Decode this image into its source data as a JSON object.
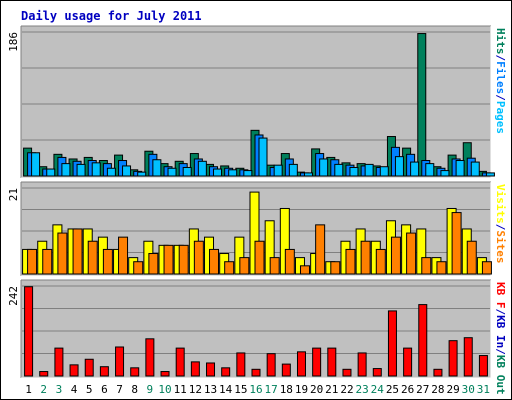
{
  "chart_data": {
    "type": "bar",
    "title": "Daily usage for July 2011",
    "days": [
      "1",
      "2",
      "3",
      "4",
      "5",
      "6",
      "7",
      "8",
      "9",
      "10",
      "11",
      "12",
      "13",
      "14",
      "15",
      "16",
      "17",
      "18",
      "19",
      "20",
      "21",
      "22",
      "23",
      "24",
      "25",
      "26",
      "27",
      "28",
      "29",
      "30",
      "31"
    ],
    "weekend_days": [
      "2",
      "3",
      "9",
      "10",
      "16",
      "17",
      "23",
      "24",
      "30",
      "31"
    ],
    "colors": {
      "background": "#ffffff",
      "plot": "#c0c0c0",
      "title": "#0000c0",
      "weekday_label": "#000000",
      "weekend_label": "#00805c",
      "hits": "#00805c",
      "files": "#0080ff",
      "pages": "#00c0ff",
      "visits": "#ffff00",
      "sites": "#ff8000",
      "kbin": "#0000c0",
      "kbout": "#00805c",
      "kbf": "#ff0000"
    },
    "panels": [
      {
        "id": "hits_files_pages",
        "ymax_label": "186",
        "ymax": 186,
        "legend": [
          {
            "text": "Hits",
            "color_key": "hits"
          },
          {
            "text": "/",
            "color_key": "title"
          },
          {
            "text": "Files",
            "color_key": "files"
          },
          {
            "text": "/",
            "color_key": "title"
          },
          {
            "text": "Pages",
            "color_key": "pages"
          }
        ],
        "series": [
          {
            "name": "Hits",
            "color_key": "hits",
            "values": [
              36,
              12,
              28,
              22,
              24,
              20,
              27,
              8,
              32,
              16,
              19,
              29,
              15,
              13,
              10,
              59,
              14,
              29,
              5,
              35,
              24,
              17,
              16,
              13,
              51,
              36,
              184,
              12,
              27,
              43,
              6
            ]
          },
          {
            "name": "Files",
            "color_key": "files",
            "values": [
              30,
              9,
              24,
              19,
              20,
              16,
              20,
              6,
              28,
              12,
              16,
              22,
              12,
              10,
              8,
              53,
              11,
              22,
              4,
              29,
              21,
              14,
              13,
              11,
              37,
              28,
              20,
              10,
              22,
              23,
              4
            ]
          },
          {
            "name": "Pages",
            "color_key": "pages",
            "values": [
              30,
              9,
              16,
              15,
              17,
              10,
              13,
              5,
              21,
              10,
              11,
              19,
              9,
              8,
              7,
              49,
              14,
              15,
              4,
              22,
              15,
              11,
              15,
              12,
              25,
              18,
              16,
              7,
              20,
              18,
              4
            ]
          }
        ]
      },
      {
        "id": "visits_sites",
        "ymax_label": "21",
        "ymax": 21,
        "legend": [
          {
            "text": "Visits",
            "color_key": "visits"
          },
          {
            "text": "/",
            "color_key": "title"
          },
          {
            "text": "Sites",
            "color_key": "sites"
          }
        ],
        "series": [
          {
            "name": "Visits",
            "color_key": "visits",
            "values": [
              6,
              8,
              12,
              11,
              11,
              9,
              6,
              4,
              8,
              7,
              7,
              11,
              9,
              5,
              9,
              20,
              13,
              16,
              4,
              5,
              3,
              8,
              11,
              8,
              13,
              12,
              11,
              4,
              16,
              11,
              4
            ]
          },
          {
            "name": "Sites",
            "color_key": "sites",
            "values": [
              6,
              6,
              10,
              11,
              8,
              6,
              9,
              3,
              5,
              7,
              7,
              8,
              6,
              3,
              4,
              8,
              4,
              6,
              2,
              12,
              3,
              6,
              8,
              6,
              9,
              10,
              4,
              3,
              15,
              8,
              3
            ]
          }
        ]
      },
      {
        "id": "kbytes",
        "ymax_label": "242",
        "ymax": 242,
        "legend": [
          {
            "text": "KB F",
            "color_key": "kbf"
          },
          {
            "text": "/",
            "color_key": "title"
          },
          {
            "text": "KB In",
            "color_key": "kbin"
          },
          {
            "text": "/",
            "color_key": "title"
          },
          {
            "text": "KB Out",
            "color_key": "kbout"
          }
        ],
        "series": [
          {
            "name": "KB F",
            "color_key": "kbf",
            "values": [
              240,
              12,
              75,
              30,
              45,
              25,
              78,
              22,
              100,
              12,
              75,
              38,
              35,
              22,
              62,
              18,
              60,
              32,
              65,
              75,
              75,
              18,
              62,
              20,
              175,
              75,
              192,
              18,
              95,
              103,
              55
            ]
          }
        ]
      }
    ]
  }
}
